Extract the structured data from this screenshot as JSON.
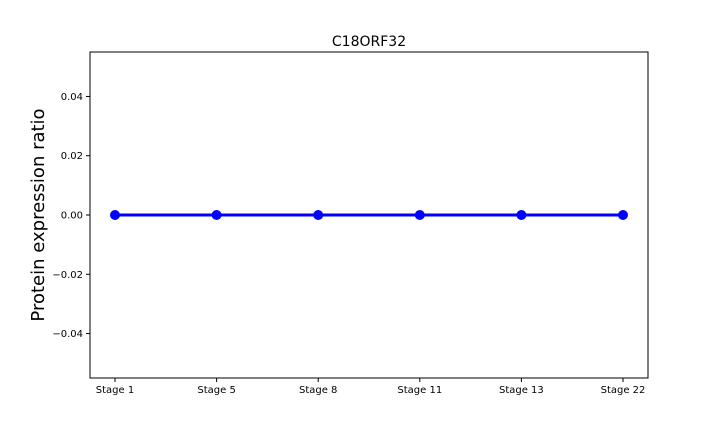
{
  "chart_data": {
    "type": "line",
    "title": "C18ORF32",
    "xlabel": "",
    "ylabel": "Protein expression ratio",
    "categories": [
      "Stage 1",
      "Stage 5",
      "Stage 8",
      "Stage 11",
      "Stage 13",
      "Stage 22"
    ],
    "series": [
      {
        "values": [
          0,
          0,
          0,
          0,
          0,
          0
        ],
        "color": "#0000ff"
      }
    ],
    "ylim": [
      -0.055,
      0.055
    ],
    "yticks": [
      -0.04,
      -0.02,
      0.0,
      0.02,
      0.04
    ],
    "ytick_labels": [
      "−0.04",
      "−0.02",
      "0.00",
      "0.02",
      "0.04"
    ],
    "grid": false,
    "legend": "none"
  }
}
